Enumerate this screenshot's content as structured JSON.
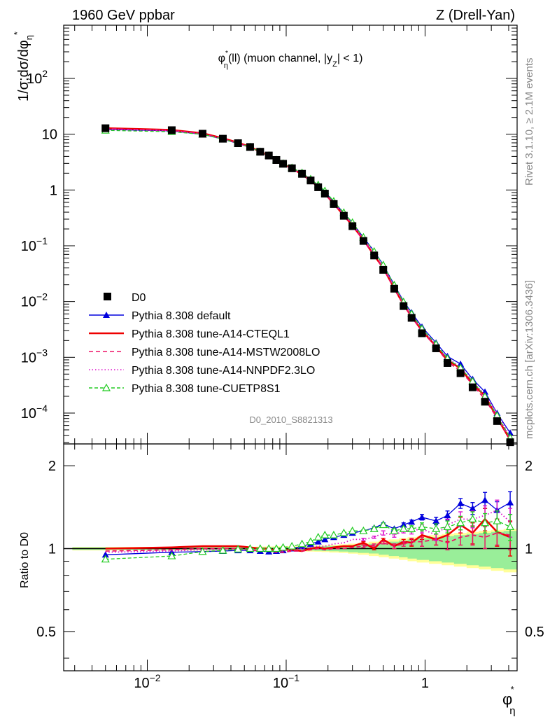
{
  "header": {
    "left": "1960 GeV ppbar",
    "right": "Z (Drell-Yan)"
  },
  "side_text": {
    "rivet": "Rivet 3.1.10, ≥ 2.1M events",
    "mcplots": "mcplots.cern.ch [arXiv:1306.3436]"
  },
  "main_plot": {
    "title_phi": "φ",
    "title_phi_sub": "η",
    "title_rest": "(ll) (muon channel, |y",
    "title_y_sub": "Z",
    "title_end": "| < 1)",
    "ylabel": "1/σ;dσ/dφ",
    "ylabel_sub": "η",
    "analysis": "D0_2010_S8821313",
    "yticks": [
      {
        "v": 0.0001,
        "base": "10",
        "exp": "−4"
      },
      {
        "v": 0.001,
        "base": "10",
        "exp": "−3"
      },
      {
        "v": 0.01,
        "base": "10",
        "exp": "−2"
      },
      {
        "v": 0.1,
        "base": "10",
        "exp": "−1"
      },
      {
        "v": 1,
        "base": "1",
        "exp": ""
      },
      {
        "v": 10,
        "base": "10",
        "exp": ""
      },
      {
        "v": 100,
        "base": "10",
        "exp": "2"
      }
    ]
  },
  "ratio_plot": {
    "ylabel": "Ratio to D0",
    "yticks": [
      "0.5",
      "1",
      "2"
    ]
  },
  "xaxis": {
    "label": "φ",
    "label_sub": "η",
    "ticks": [
      {
        "v": 0.01,
        "base": "10",
        "exp": "−2"
      },
      {
        "v": 0.1,
        "base": "10",
        "exp": "−1"
      },
      {
        "v": 1,
        "base": "1",
        "exp": ""
      }
    ]
  },
  "legend": [
    {
      "label": "D0",
      "color": "#000000",
      "style": "data"
    },
    {
      "label": "Pythia 8.308 default",
      "color": "#0000dd",
      "style": "solid-triangle"
    },
    {
      "label": "Pythia 8.308 tune-A14-CTEQL1",
      "color": "#ee0000",
      "style": "solid-thick"
    },
    {
      "label": "Pythia 8.308 tune-A14-MSTW2008LO",
      "color": "#ee1166",
      "style": "dashed"
    },
    {
      "label": "Pythia 8.308 tune-A14-NNPDF2.3LO",
      "color": "#dd11cc",
      "style": "dotted"
    },
    {
      "label": "Pythia 8.308 tune-CUETP8S1",
      "color": "#22cc22",
      "style": "dashed-open-triangle"
    }
  ],
  "chart_data": {
    "type": "line",
    "x_scale": "log",
    "xlim": [
      0.0025,
      4.6
    ],
    "ylim_main": [
      2.8e-05,
      900
    ],
    "ylim_ratio": [
      0.36,
      2.4
    ],
    "grid": false,
    "legend_position": "lower-left",
    "x": [
      0.005,
      0.015,
      0.025,
      0.035,
      0.045,
      0.055,
      0.065,
      0.075,
      0.085,
      0.095,
      0.11,
      0.13,
      0.15,
      0.17,
      0.19,
      0.22,
      0.26,
      0.3,
      0.36,
      0.43,
      0.5,
      0.6,
      0.7,
      0.8,
      0.95,
      1.2,
      1.45,
      1.8,
      2.2,
      2.7,
      3.3,
      4.1
    ],
    "data_D0": [
      12.8,
      11.8,
      10.2,
      8.3,
      6.9,
      5.9,
      4.85,
      4.15,
      3.45,
      2.95,
      2.45,
      1.95,
      1.48,
      1.12,
      0.86,
      0.56,
      0.345,
      0.225,
      0.122,
      0.067,
      0.037,
      0.017,
      0.0083,
      0.0051,
      0.0027,
      0.00145,
      0.00079,
      0.00052,
      0.00029,
      0.00016,
      7.2e-05,
      3e-05
    ],
    "ratio_band_green_halfwidth": [
      0.01,
      0.01,
      0.01,
      0.01,
      0.01,
      0.01,
      0.012,
      0.012,
      0.012,
      0.013,
      0.014,
      0.015,
      0.016,
      0.018,
      0.02,
      0.022,
      0.025,
      0.03,
      0.035,
      0.04,
      0.05,
      0.06,
      0.07,
      0.08,
      0.09,
      0.1,
      0.11,
      0.12,
      0.13,
      0.14,
      0.15,
      0.16
    ],
    "ratio_band_yellow_halfwidth": [
      0.015,
      0.015,
      0.015,
      0.015,
      0.015,
      0.016,
      0.017,
      0.018,
      0.019,
      0.02,
      0.021,
      0.022,
      0.024,
      0.026,
      0.028,
      0.032,
      0.036,
      0.042,
      0.05,
      0.06,
      0.07,
      0.08,
      0.09,
      0.1,
      0.11,
      0.12,
      0.13,
      0.14,
      0.15,
      0.16,
      0.17,
      0.18
    ],
    "series": [
      {
        "name": "Pythia 8.308 default",
        "color": "#0000dd",
        "dash": "",
        "width": 1.3,
        "marker": "filled-triangle",
        "ratio": [
          0.95,
          0.97,
          0.975,
          0.98,
          0.985,
          0.985,
          0.98,
          0.975,
          0.98,
          0.985,
          1.0,
          1.02,
          1.04,
          1.06,
          1.08,
          1.1,
          1.12,
          1.14,
          1.16,
          1.19,
          1.23,
          1.18,
          1.22,
          1.25,
          1.3,
          1.26,
          1.32,
          1.46,
          1.4,
          1.5,
          1.38,
          1.47
        ],
        "err": [
          0,
          0,
          0,
          0,
          0,
          0,
          0,
          0,
          0,
          0,
          0,
          0,
          0,
          0,
          0,
          0,
          0,
          0,
          0.01,
          0.01,
          0.01,
          0.01,
          0.02,
          0.02,
          0.03,
          0.04,
          0.05,
          0.06,
          0.07,
          0.1,
          0.1,
          0.14
        ]
      },
      {
        "name": "Pythia 8.308 tune-A14-CTEQL1",
        "color": "#ee0000",
        "dash": "",
        "width": 2.6,
        "marker": "",
        "ratio": [
          1.0,
          1.01,
          1.02,
          1.02,
          1.02,
          1.01,
          1.0,
          1.0,
          0.98,
          0.99,
          0.99,
          0.98,
          1.0,
          1.01,
          1.0,
          1.01,
          1.02,
          1.02,
          1.05,
          1.0,
          1.08,
          1.02,
          1.06,
          1.05,
          1.12,
          1.08,
          1.12,
          1.22,
          1.14,
          1.28,
          1.15,
          1.1
        ],
        "err": [
          0,
          0,
          0,
          0,
          0,
          0,
          0,
          0,
          0,
          0,
          0,
          0,
          0,
          0,
          0,
          0,
          0,
          0,
          0.01,
          0.01,
          0.01,
          0.02,
          0.02,
          0.03,
          0.04,
          0.05,
          0.06,
          0.08,
          0.1,
          0.12,
          0.13,
          0.16
        ]
      },
      {
        "name": "Pythia 8.308 tune-A14-MSTW2008LO",
        "color": "#ee1166",
        "dash": "6,4",
        "width": 1.8,
        "marker": "",
        "ratio": [
          0.98,
          0.99,
          1.0,
          1.0,
          1.0,
          0.99,
          0.98,
          0.98,
          0.97,
          0.97,
          0.98,
          0.98,
          0.99,
          1.0,
          0.99,
          1.0,
          1.0,
          1.01,
          1.02,
          1.03,
          1.05,
          1.02,
          1.04,
          1.06,
          1.06,
          1.08,
          1.05,
          1.1,
          1.12,
          1.1,
          1.14,
          1.12
        ],
        "err": [
          0,
          0,
          0,
          0,
          0,
          0,
          0,
          0,
          0,
          0,
          0,
          0,
          0,
          0,
          0,
          0,
          0,
          0,
          0.01,
          0.01,
          0.01,
          0.02,
          0.02,
          0.03,
          0.04,
          0.05,
          0.06,
          0.07,
          0.09,
          0.1,
          0.11,
          0.13
        ]
      },
      {
        "name": "Pythia 8.308 tune-A14-NNPDF2.3LO",
        "color": "#dd11cc",
        "dash": "1.5,3",
        "width": 1.8,
        "marker": "",
        "ratio": [
          0.97,
          0.98,
          0.99,
          0.99,
          0.99,
          0.99,
          0.98,
          0.98,
          0.98,
          0.98,
          0.99,
          1.0,
          1.01,
          1.02,
          1.02,
          1.04,
          1.05,
          1.08,
          1.08,
          1.1,
          1.14,
          1.12,
          1.16,
          1.16,
          1.18,
          1.12,
          1.22,
          1.28,
          1.28,
          1.32,
          1.38,
          1.25
        ],
        "err": [
          0,
          0,
          0,
          0,
          0,
          0,
          0,
          0,
          0,
          0,
          0,
          0,
          0,
          0,
          0,
          0,
          0,
          0,
          0.01,
          0.01,
          0.02,
          0.02,
          0.02,
          0.03,
          0.04,
          0.05,
          0.06,
          0.08,
          0.09,
          0.11,
          0.12,
          0.15
        ]
      },
      {
        "name": "Pythia 8.308 tune-CUETP8S1",
        "color": "#22cc22",
        "dash": "5,3",
        "width": 1.3,
        "marker": "open-triangle",
        "ratio": [
          0.915,
          0.94,
          0.975,
          0.985,
          0.995,
          1.0,
          1.0,
          1.0,
          1.0,
          1.01,
          1.02,
          1.04,
          1.06,
          1.1,
          1.12,
          1.12,
          1.14,
          1.16,
          1.16,
          1.18,
          1.22,
          1.16,
          1.18,
          1.18,
          1.2,
          1.18,
          1.2,
          1.24,
          1.28,
          1.24,
          1.26,
          1.2
        ],
        "err": [
          0,
          0,
          0,
          0,
          0,
          0,
          0,
          0,
          0,
          0,
          0,
          0,
          0,
          0,
          0,
          0,
          0,
          0,
          0.01,
          0.01,
          0.01,
          0.02,
          0.02,
          0.03,
          0.04,
          0.05,
          0.06,
          0.07,
          0.08,
          0.1,
          0.11,
          0.13
        ]
      }
    ]
  }
}
